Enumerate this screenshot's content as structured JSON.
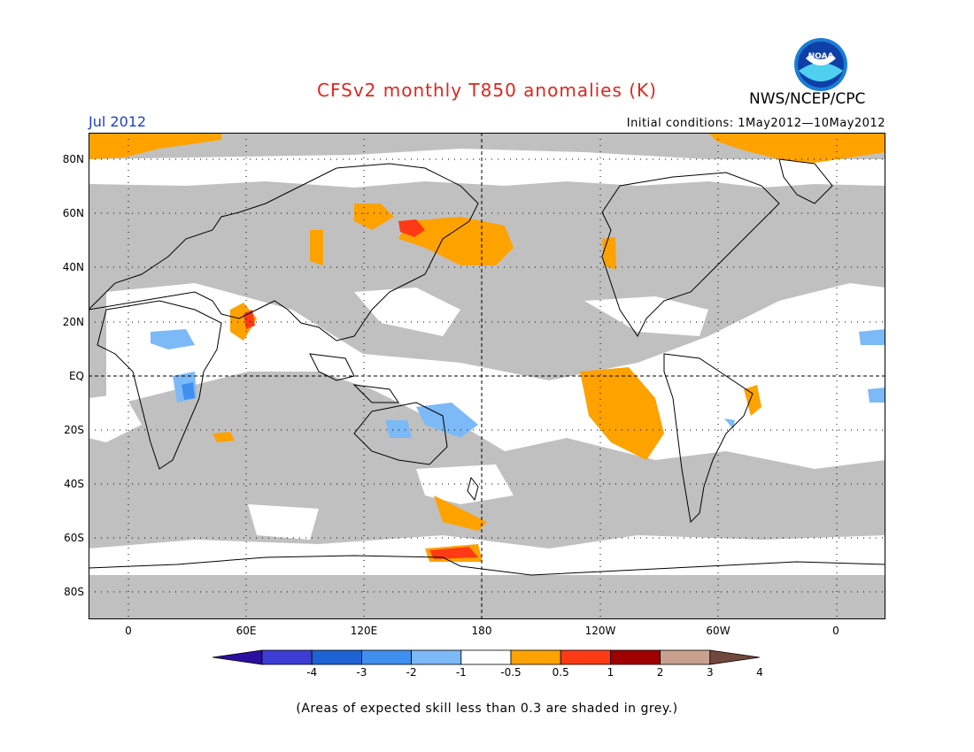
{
  "header": {
    "title": "CFSv2 monthly T850 anomalies (K)",
    "agency": "NWS/NCEP/CPC",
    "month": "Jul 2012",
    "initial_conditions": "Initial conditions: 1May2012—10May2012",
    "logo_text": "NOAA"
  },
  "map": {
    "lat_labels": [
      "80N",
      "60N",
      "40N",
      "20N",
      "EQ",
      "20S",
      "40S",
      "60S",
      "80S"
    ],
    "lon_labels": [
      "0",
      "60E",
      "120E",
      "180",
      "120W",
      "60W",
      "0"
    ],
    "colors": {
      "no_skill_grey": "#c0c0c0",
      "title_red": "#e0261b",
      "month_blue": "#1a3fd1"
    }
  },
  "colorbar": {
    "labels": [
      "-4",
      "-3",
      "-2",
      "-1",
      "-0.5",
      "0.5",
      "1",
      "2",
      "3",
      "4"
    ],
    "colors": [
      "#2a0fa0",
      "#3d3dd6",
      "#1e63d6",
      "#3f8ff0",
      "#7cb9f7",
      "#ffffff",
      "#fea200",
      "#ff3a14",
      "#a00000",
      "#c8a090",
      "#70493c"
    ]
  },
  "footer": {
    "note": "(Areas of expected skill less than 0.3 are shaded in grey.)"
  }
}
